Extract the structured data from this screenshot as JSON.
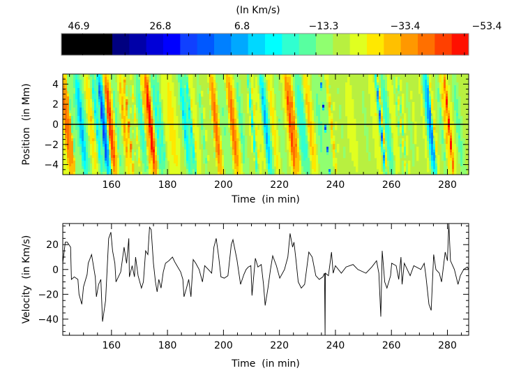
{
  "chart_data": [
    {
      "type": "colorbar",
      "title": "(In Km/s)",
      "tick_labels": [
        "46.9",
        "26.8",
        "6.8",
        "−13.3",
        "−33.4",
        "−53.4"
      ],
      "range": [
        46.9,
        -53.4
      ],
      "colors": [
        "#000000",
        "#000000",
        "#000000",
        "#000080",
        "#0000a8",
        "#0000d8",
        "#0000ff",
        "#1040ff",
        "#0058ff",
        "#0080ff",
        "#00a8ff",
        "#00d8ff",
        "#00ffff",
        "#30ffd0",
        "#58ffa0",
        "#90ff70",
        "#b8f040",
        "#e0ff20",
        "#ffe800",
        "#ffc000",
        "#ff9800",
        "#ff7000",
        "#ff4000",
        "#ff1000"
      ]
    },
    {
      "type": "heatmap",
      "xlabel": "Time  (in min)",
      "ylabel": "Position  (in Mm)",
      "xlim": [
        142.6,
        287.6
      ],
      "ylim": [
        -5,
        5
      ],
      "xticks": [
        160,
        180,
        200,
        220,
        240,
        260,
        280
      ],
      "yticks": [
        4,
        2,
        0,
        -2,
        -4
      ],
      "xtick_labels": [
        "160",
        "180",
        "200",
        "220",
        "240",
        "260",
        "280"
      ],
      "ytick_labels": [
        "4",
        "2",
        "0",
        "−2",
        "−4"
      ],
      "reference_line_position": 0,
      "background_color": "#b8f040"
    },
    {
      "type": "line",
      "xlabel": "Time  (in min)",
      "ylabel": "Velocity  (in Km/s)",
      "xlim": [
        142.6,
        287.6
      ],
      "ylim": [
        -53,
        37
      ],
      "xticks": [
        160,
        180,
        200,
        220,
        240,
        260,
        280
      ],
      "yticks": [
        20,
        0,
        -20,
        -40
      ],
      "xtick_labels": [
        "160",
        "180",
        "200",
        "220",
        "240",
        "260",
        "280"
      ],
      "ytick_labels": [
        "20",
        "0",
        "−20",
        "−40"
      ],
      "color": "#000000",
      "x": [
        142.6,
        143.5,
        144.2,
        145.4,
        145.7,
        146.7,
        148,
        148.4,
        149.4,
        150,
        151.3,
        151.7,
        152.9,
        154.2,
        154.6,
        155.4,
        156.2,
        156.8,
        157.9,
        159,
        159.8,
        160.4,
        161.2,
        161.6,
        163.3,
        164.5,
        165.4,
        166.2,
        166.4,
        167.4,
        168.2,
        168.6,
        169.5,
        170.7,
        171.4,
        172.2,
        173,
        173.6,
        174.2,
        175,
        175.7,
        176.3,
        176.9,
        177.7,
        178.5,
        179.3,
        180.5,
        181.8,
        182.6,
        184.7,
        185.5,
        185.9,
        186.8,
        187.6,
        188.4,
        189.2,
        190.1,
        191.3,
        192.5,
        193.3,
        194.6,
        195.8,
        196.6,
        197.4,
        198.3,
        199.1,
        200.3,
        201.6,
        202.8,
        203.4,
        204.8,
        206.1,
        207.3,
        208.1,
        208.9,
        209.8,
        210.2,
        211.4,
        212.3,
        213.5,
        214.3,
        214.9,
        215.9,
        216.8,
        217.6,
        218.9,
        220.1,
        221.8,
        223,
        223.8,
        224.7,
        225.2,
        225.9,
        226.7,
        227.8,
        229,
        230.5,
        231.7,
        233,
        234.2,
        235.5,
        236.1,
        236.3,
        236.4,
        237.5,
        238.6,
        239.2,
        240,
        242.1,
        243.8,
        246.3,
        248,
        250.9,
        253,
        254.7,
        255.5,
        256.2,
        256.7,
        257.6,
        258.4,
        259.7,
        260.1,
        261.7,
        262.6,
        263.4,
        263.8,
        264.6,
        266.7,
        268,
        270.5,
        271.7,
        272.3,
        273.4,
        274.2,
        275.1,
        275.9,
        277.1,
        277.9,
        279.2,
        280,
        280.5,
        281.1,
        282.5,
        283.8,
        284.6,
        285.8,
        287.1,
        287.6
      ],
      "y": [
        5,
        22,
        22,
        18,
        -8,
        -6,
        -8,
        -20,
        -28,
        -14,
        -4,
        5,
        12,
        -6,
        -22,
        -12,
        -8,
        -42,
        -25,
        25,
        30,
        15,
        5,
        -10,
        -2,
        18,
        5,
        25,
        -6,
        3,
        -6,
        10,
        -5,
        -15,
        -10,
        15,
        12,
        34,
        32,
        5,
        -10,
        -18,
        -8,
        -15,
        -2,
        5,
        7,
        10,
        6,
        -2,
        -8,
        -22,
        -15,
        -8,
        -22,
        8,
        5,
        0,
        -10,
        3,
        0,
        -3,
        18,
        25,
        10,
        -6,
        -7,
        -5,
        20,
        24,
        8,
        -12,
        -4,
        0,
        2,
        3,
        -21,
        9,
        2,
        4,
        -12,
        -29,
        -15,
        0,
        11,
        3,
        -7,
        0,
        10,
        29,
        18,
        22,
        8,
        -10,
        -15,
        -12,
        14,
        10,
        -5,
        -8,
        -6,
        -3,
        -53,
        -3,
        -5,
        14,
        -3,
        3,
        -3,
        2,
        4,
        0,
        -3,
        2,
        7,
        -3,
        -38,
        15,
        -10,
        -15,
        -5,
        5,
        3,
        -8,
        10,
        -12,
        5,
        -5,
        3,
        0,
        5,
        -5,
        -28,
        -33,
        12,
        0,
        -3,
        -10,
        14,
        7,
        37,
        7,
        0,
        -12,
        -5,
        0,
        2,
        0
      ]
    }
  ]
}
